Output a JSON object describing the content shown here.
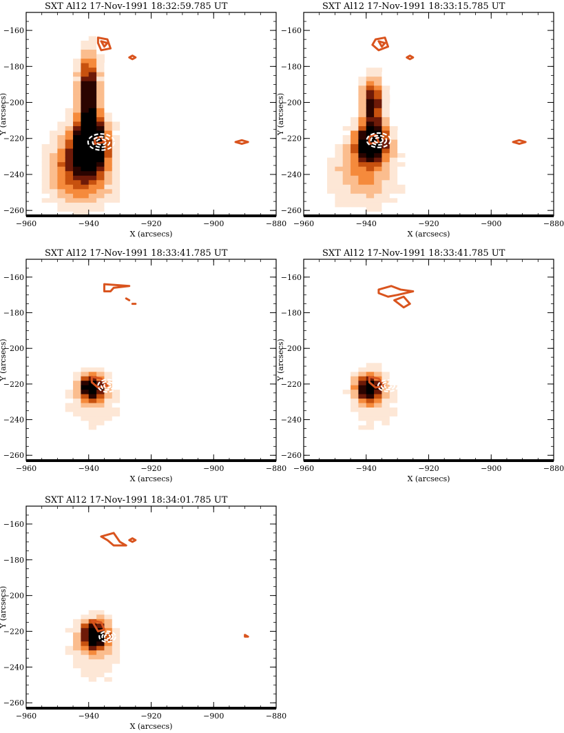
{
  "figure": {
    "panels": [
      {
        "title": "SXT Al12    17-Nov-1991  18:32:59.785 UT",
        "xlabel": "X (arcsecs)",
        "ylabel": "Y (arcsecs)"
      },
      {
        "title": "SXT Al12    17-Nov-1991  18:33:15.785 UT",
        "xlabel": "X (arcsecs)",
        "ylabel": "Y (arcsecs)"
      },
      {
        "title": "SXT Al12    17-Nov-1991  18:33:41.785 UT",
        "xlabel": "X (arcsecs)",
        "ylabel": "Y (arcsecs)"
      },
      {
        "title": "SXT Al12    17-Nov-1991  18:33:41.785 UT",
        "xlabel": "X (arcsecs)",
        "ylabel": "Y (arcsecs)"
      },
      {
        "title": "SXT Al12    17-Nov-1991  18:34:01.785 UT",
        "xlabel": "X (arcsecs)",
        "ylabel": "Y (arcsecs)"
      }
    ],
    "x_ticks": [
      "−960",
      "−940",
      "−920",
      "−900",
      "−880"
    ],
    "y_ticks": [
      "−160",
      "−180",
      "−200",
      "−220",
      "−240",
      "−260"
    ],
    "x_range": [
      -960,
      -880
    ],
    "y_range": [
      -263,
      -150
    ],
    "colors": {
      "contour_orange": "#d9541e",
      "contour_white": "#ffffff",
      "colormap": [
        "#ffffff",
        "#fde7d6",
        "#fbbd8e",
        "#f58a3c",
        "#c7510f",
        "#6e1a08",
        "#2a0400",
        "#000000"
      ]
    }
  }
}
